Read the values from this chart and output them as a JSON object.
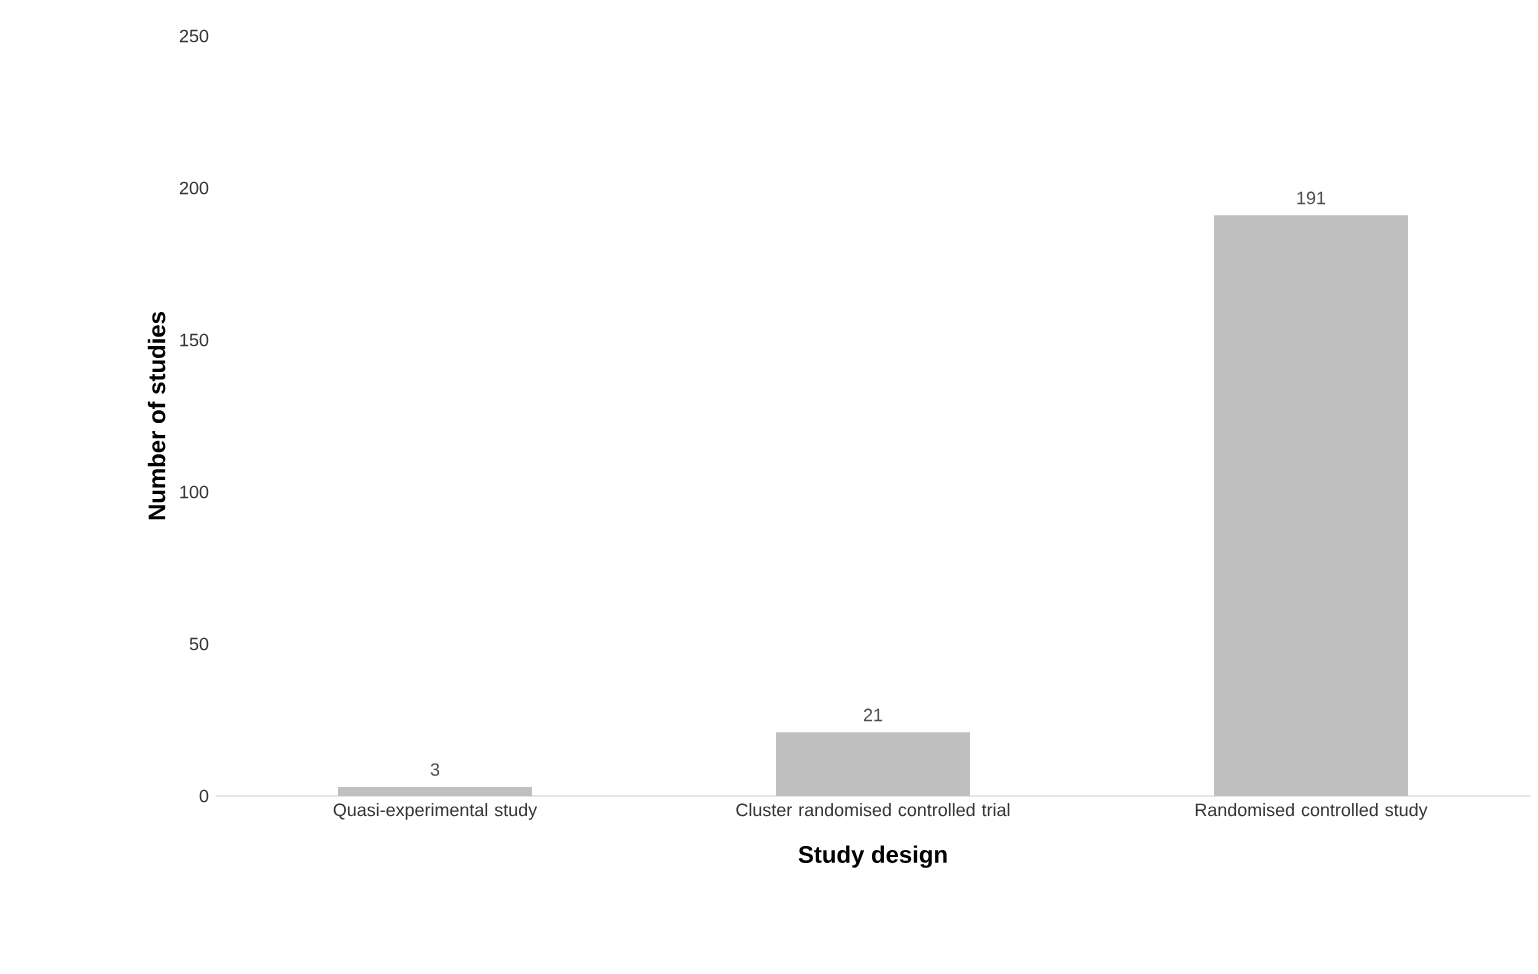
{
  "chart_data": {
    "type": "bar",
    "xlabel": "Study design",
    "ylabel": "Number of studies",
    "categories": [
      "Quasi-experimental study",
      "Cluster randomised controlled trial",
      "Randomised controlled study"
    ],
    "values": [
      3,
      21,
      191
    ],
    "color": "#bfbfbf",
    "ylim": [
      0,
      250
    ],
    "yticks": [
      0,
      50,
      100,
      150,
      200,
      250
    ],
    "data_labels": true,
    "grid": false
  }
}
